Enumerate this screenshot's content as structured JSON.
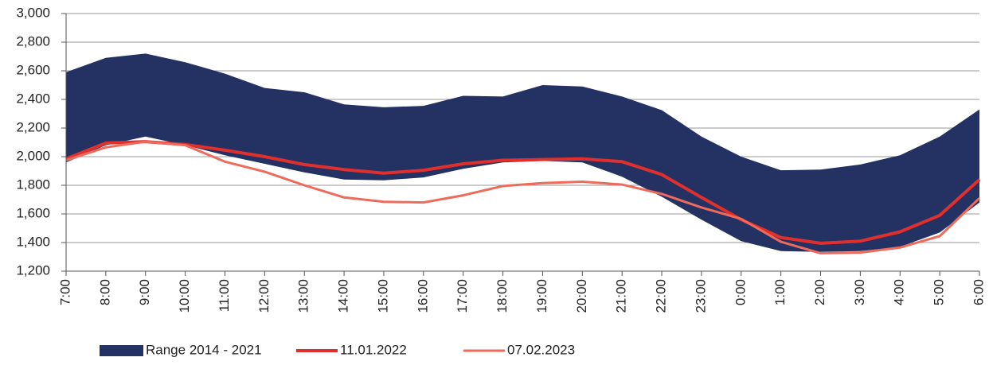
{
  "chart_data": {
    "type": "line",
    "categories": [
      "7:00",
      "8:00",
      "9:00",
      "10:00",
      "11:00",
      "12:00",
      "13:00",
      "14:00",
      "15:00",
      "16:00",
      "17:00",
      "18:00",
      "19:00",
      "20:00",
      "21:00",
      "22:00",
      "23:00",
      "0:00",
      "1:00",
      "2:00",
      "3:00",
      "4:00",
      "5:00",
      "6:00"
    ],
    "ylim": [
      1200,
      3000
    ],
    "yticks": [
      {
        "value": 1200,
        "label": "1,200"
      },
      {
        "value": 1400,
        "label": "1,400"
      },
      {
        "value": 1600,
        "label": "1,600"
      },
      {
        "value": 1800,
        "label": "1,800"
      },
      {
        "value": 2000,
        "label": "2,000"
      },
      {
        "value": 2200,
        "label": "2,200"
      },
      {
        "value": 2400,
        "label": "2,400"
      },
      {
        "value": 2600,
        "label": "2,600"
      },
      {
        "value": 2800,
        "label": "2,800"
      },
      {
        "value": 3000,
        "label": "3,000"
      }
    ],
    "grid": true,
    "legend": "bottom",
    "series": [
      {
        "name": "Range 2014 - 2021",
        "color": "#233163",
        "type": "range",
        "high": [
          2590,
          2690,
          2720,
          2660,
          2580,
          2480,
          2450,
          2365,
          2345,
          2355,
          2425,
          2420,
          2500,
          2490,
          2420,
          2325,
          2140,
          2000,
          1905,
          1910,
          1945,
          2010,
          2140,
          2330
        ],
        "low": [
          1960,
          2080,
          2140,
          2080,
          2010,
          1950,
          1890,
          1840,
          1835,
          1855,
          1915,
          1960,
          1970,
          1960,
          1860,
          1720,
          1560,
          1410,
          1340,
          1335,
          1340,
          1370,
          1470,
          1680
        ]
      },
      {
        "name": "11.01.2022",
        "color": "#e0302d",
        "type": "line",
        "values": [
          1985,
          2095,
          2105,
          2085,
          2045,
          2000,
          1945,
          1910,
          1885,
          1905,
          1950,
          1975,
          1980,
          1985,
          1965,
          1875,
          1715,
          1560,
          1435,
          1395,
          1410,
          1475,
          1590,
          1840
        ]
      },
      {
        "name": "07.02.2023",
        "color": "#ee6a5a",
        "type": "line",
        "values": [
          1975,
          2065,
          2105,
          2080,
          1965,
          1895,
          1800,
          1715,
          1685,
          1680,
          1730,
          1795,
          1815,
          1825,
          1805,
          1740,
          1645,
          1565,
          1405,
          1325,
          1330,
          1365,
          1445,
          1710
        ]
      }
    ]
  }
}
